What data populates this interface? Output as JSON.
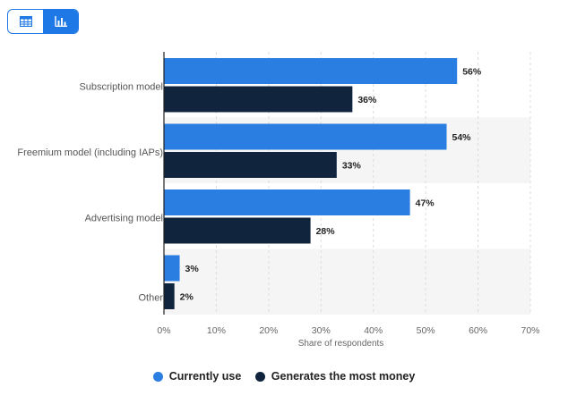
{
  "view_toggle": {
    "table_icon": "table-icon",
    "chart_icon": "bar-chart-icon",
    "active": "chart"
  },
  "colors": {
    "series1": "#2a7de1",
    "series2": "#10243e",
    "band": "#f5f5f5",
    "grid": "#dddddd",
    "axis": "#222222",
    "accent": "#1e78e6"
  },
  "chart_data": {
    "type": "bar",
    "orientation": "horizontal",
    "categories": [
      "Subscription model",
      "Freemium model (including IAPs)",
      "Advertising model",
      "Other"
    ],
    "series": [
      {
        "name": "Currently use",
        "values": [
          56,
          54,
          47,
          3
        ],
        "labels": [
          "56%",
          "54%",
          "47%",
          "3%"
        ]
      },
      {
        "name": "Generates the most money",
        "values": [
          36,
          33,
          28,
          2
        ],
        "labels": [
          "36%",
          "33%",
          "28%",
          "2%"
        ]
      }
    ],
    "xlim": [
      0,
      70
    ],
    "ticks": [
      0,
      10,
      20,
      30,
      40,
      50,
      60,
      70
    ],
    "tick_labels": [
      "0%",
      "10%",
      "20%",
      "30%",
      "40%",
      "50%",
      "60%",
      "70%"
    ],
    "xlabel": "Share of respondents",
    "grid": true
  },
  "legend": {
    "items": [
      "Currently use",
      "Generates the most money"
    ],
    "placement": "bottom"
  }
}
